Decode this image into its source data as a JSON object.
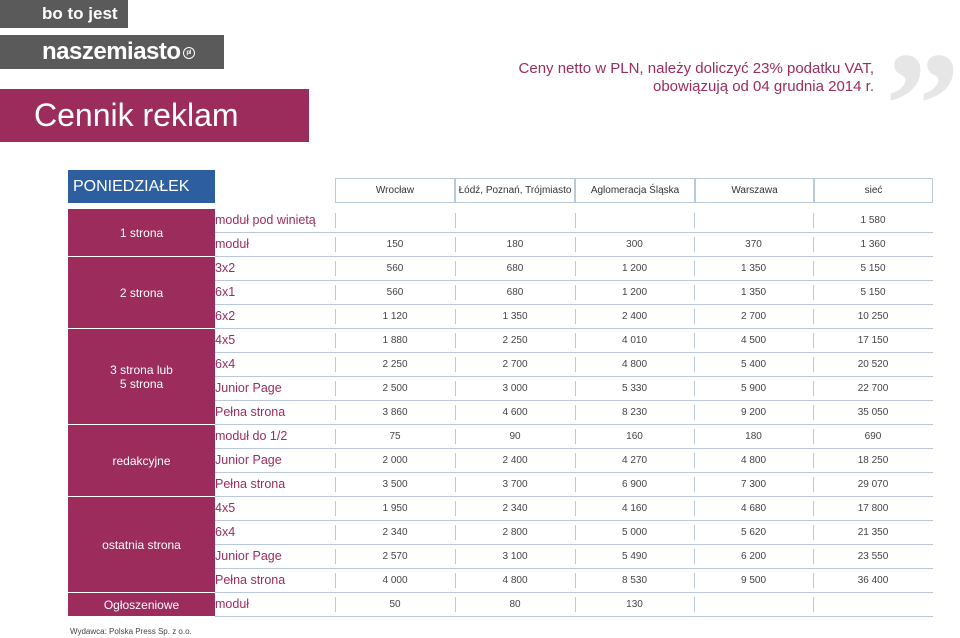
{
  "brand": {
    "tagline": "bo to jest",
    "logo": "naszemiasto",
    "logo_mark": "pl"
  },
  "title": "Cennik reklam",
  "vat_note": {
    "line1": "Ceny netto w PLN, należy doliczyć 23% podatku VAT,",
    "line2": "obowiązują od 04 grudnia 2014 r."
  },
  "day": "PONIEDZIAŁEK",
  "columns": [
    "Wrocław",
    "Łódź, Poznań, Trójmiasto",
    "Aglomeracja Śląska",
    "Warszawa",
    "sieć"
  ],
  "groups": [
    {
      "label_lines": [
        "1 strona"
      ],
      "rows": [
        {
          "label": "moduł pod winietą",
          "values": [
            "",
            "",
            "",
            "",
            "1 580"
          ]
        },
        {
          "label": "moduł",
          "values": [
            "150",
            "180",
            "300",
            "370",
            "1 360"
          ]
        }
      ]
    },
    {
      "label_lines": [
        "2 strona"
      ],
      "rows": [
        {
          "label": "3x2",
          "values": [
            "560",
            "680",
            "1 200",
            "1 350",
            "5 150"
          ]
        },
        {
          "label": "6x1",
          "values": [
            "560",
            "680",
            "1 200",
            "1 350",
            "5 150"
          ]
        },
        {
          "label": "6x2",
          "values": [
            "1 120",
            "1 350",
            "2 400",
            "2 700",
            "10 250"
          ]
        }
      ]
    },
    {
      "label_lines": [
        "3 strona lub",
        "5 strona"
      ],
      "rows": [
        {
          "label": "4x5",
          "values": [
            "1 880",
            "2 250",
            "4 010",
            "4 500",
            "17 150"
          ]
        },
        {
          "label": "6x4",
          "values": [
            "2 250",
            "2 700",
            "4 800",
            "5 400",
            "20 520"
          ]
        },
        {
          "label": "Junior Page",
          "values": [
            "2 500",
            "3 000",
            "5 330",
            "5 900",
            "22 700"
          ]
        },
        {
          "label": "Pełna strona",
          "values": [
            "3 860",
            "4 600",
            "8 230",
            "9 200",
            "35 050"
          ]
        }
      ]
    },
    {
      "label_lines": [
        "redakcyjne"
      ],
      "rows": [
        {
          "label": "moduł do 1/2",
          "values": [
            "75",
            "90",
            "160",
            "180",
            "690"
          ]
        },
        {
          "label": "Junior Page",
          "values": [
            "2 000",
            "2 400",
            "4 270",
            "4 800",
            "18 250"
          ]
        },
        {
          "label": "Pełna strona",
          "values": [
            "3 500",
            "3 700",
            "6 900",
            "7 300",
            "29 070"
          ]
        }
      ]
    },
    {
      "label_lines": [
        "ostatnia strona"
      ],
      "rows": [
        {
          "label": "4x5",
          "values": [
            "1 950",
            "2 340",
            "4 160",
            "4 680",
            "17 800"
          ]
        },
        {
          "label": "6x4",
          "values": [
            "2 340",
            "2 800",
            "5 000",
            "5 620",
            "21 350"
          ]
        },
        {
          "label": "Junior Page",
          "values": [
            "2 570",
            "3 100",
            "5 490",
            "6 200",
            "23 550"
          ]
        },
        {
          "label": "Pełna strona",
          "values": [
            "4 000",
            "4 800",
            "8 530",
            "9 500",
            "36 400"
          ]
        }
      ]
    },
    {
      "label_lines": [
        "Ogłoszeniowe"
      ],
      "rows": [
        {
          "label": "moduł",
          "values": [
            "50",
            "80",
            "130",
            "",
            ""
          ]
        }
      ]
    }
  ],
  "publisher": "Wydawca: Polska Press Sp. z o.o.",
  "colors": {
    "accent": "#9b2c5c",
    "day_header": "#2d5fa0",
    "brand_grey": "#5a5a5a"
  }
}
